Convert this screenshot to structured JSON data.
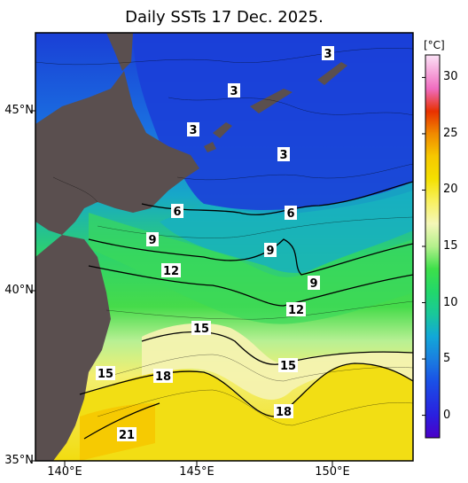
{
  "title": "Daily SSTs 17 Dec. 2025.",
  "colorbar": {
    "unit": "[°C]",
    "range": [
      -2,
      32
    ],
    "ticks": [
      "0",
      "5",
      "10",
      "15",
      "20",
      "25",
      "30"
    ],
    "stops": [
      {
        "t": -2,
        "color": "#4b00c8"
      },
      {
        "t": 0,
        "color": "#2a1fe0"
      },
      {
        "t": 3,
        "color": "#1a50e6"
      },
      {
        "t": 5,
        "color": "#1a7fe0"
      },
      {
        "t": 7,
        "color": "#12a8d8"
      },
      {
        "t": 9,
        "color": "#19c89a"
      },
      {
        "t": 11,
        "color": "#22d86a"
      },
      {
        "t": 13,
        "color": "#3ee04a"
      },
      {
        "t": 15,
        "color": "#b4f08c"
      },
      {
        "t": 17,
        "color": "#f4f7b8"
      },
      {
        "t": 19,
        "color": "#f8f060"
      },
      {
        "t": 21,
        "color": "#f4e000"
      },
      {
        "t": 23,
        "color": "#f6c800"
      },
      {
        "t": 25,
        "color": "#f08a00"
      },
      {
        "t": 27,
        "color": "#e83000"
      },
      {
        "t": 29,
        "color": "#f06cc0"
      },
      {
        "t": 32,
        "color": "#fbe2f6"
      }
    ]
  },
  "axes": {
    "lat_labels": [
      "45°N",
      "40°N",
      "35°N"
    ],
    "lon_labels": [
      "140°E",
      "145°E",
      "150°E"
    ]
  },
  "isotherm_labels": [
    "3",
    "3",
    "3",
    "3",
    "6",
    "6",
    "9",
    "9",
    "9",
    "12",
    "12",
    "15",
    "15",
    "15",
    "18",
    "18",
    "21"
  ],
  "colors": {
    "land": "#5a4f4f",
    "contour": "#000000",
    "frame": "#000000"
  }
}
